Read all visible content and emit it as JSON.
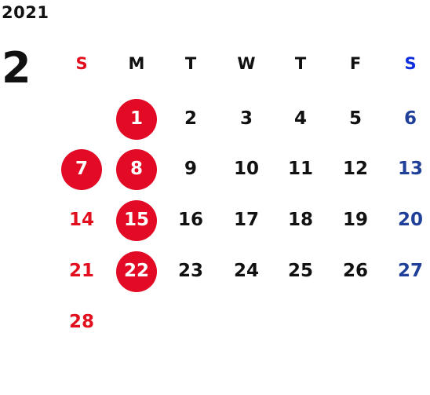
{
  "year": "2021",
  "month": "2",
  "weekday_headers": [
    "S",
    "M",
    "T",
    "W",
    "T",
    "F",
    "S"
  ],
  "colors": {
    "sunday": "#e20f1f",
    "saturday": "#1f3f99",
    "saturday_header": "#1030e0",
    "holiday_circle": "#e20a24",
    "weekday": "#111111"
  },
  "weeks": [
    [
      {
        "day": ""
      },
      {
        "day": "1",
        "holiday": true
      },
      {
        "day": "2"
      },
      {
        "day": "3"
      },
      {
        "day": "4"
      },
      {
        "day": "5"
      },
      {
        "day": "6"
      }
    ],
    [
      {
        "day": "7",
        "holiday": true
      },
      {
        "day": "8",
        "holiday": true
      },
      {
        "day": "9"
      },
      {
        "day": "10"
      },
      {
        "day": "11"
      },
      {
        "day": "12"
      },
      {
        "day": "13"
      }
    ],
    [
      {
        "day": "14"
      },
      {
        "day": "15",
        "holiday": true
      },
      {
        "day": "16"
      },
      {
        "day": "17"
      },
      {
        "day": "18"
      },
      {
        "day": "19"
      },
      {
        "day": "20"
      }
    ],
    [
      {
        "day": "21"
      },
      {
        "day": "22",
        "holiday": true
      },
      {
        "day": "23"
      },
      {
        "day": "24"
      },
      {
        "day": "25"
      },
      {
        "day": "26"
      },
      {
        "day": "27"
      }
    ],
    [
      {
        "day": "28"
      },
      {
        "day": ""
      },
      {
        "day": ""
      },
      {
        "day": ""
      },
      {
        "day": ""
      },
      {
        "day": ""
      },
      {
        "day": ""
      }
    ]
  ]
}
